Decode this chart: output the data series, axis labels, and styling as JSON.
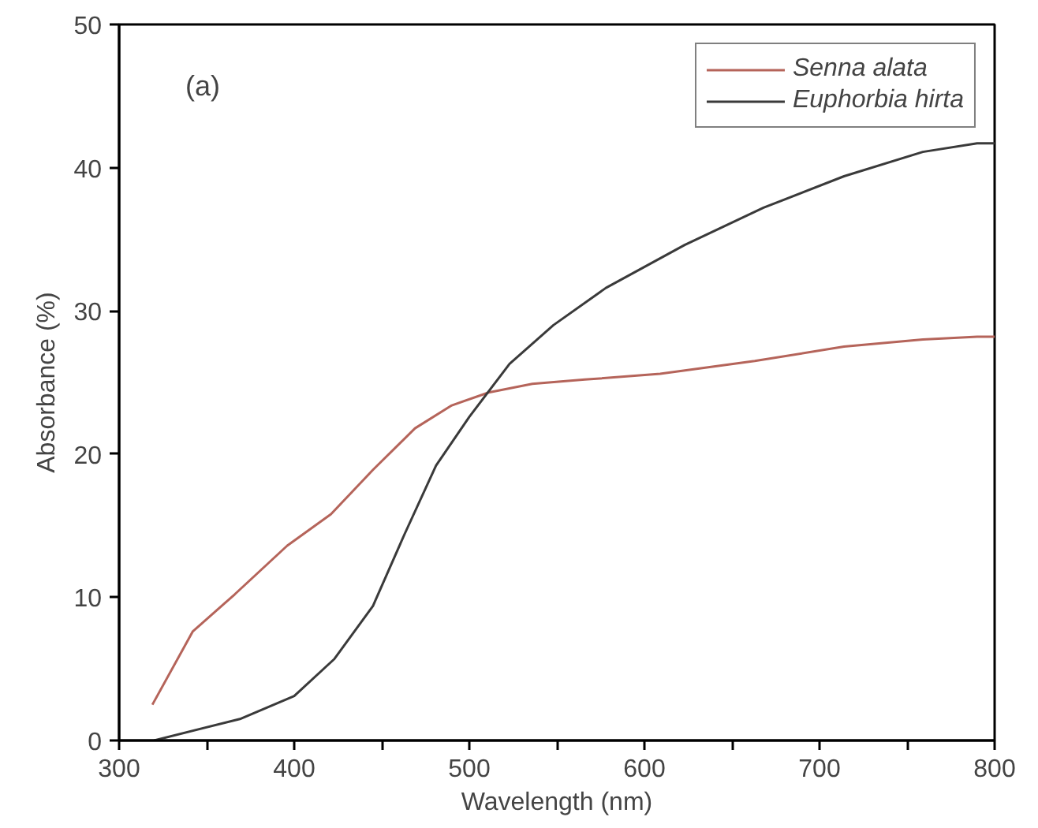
{
  "chart_data": {
    "type": "line",
    "xlabel": "Wavelength (nm)",
    "ylabel": "Absorbance (%)",
    "annotations": [
      "(a)"
    ],
    "xlim": [
      300,
      800
    ],
    "ylim": [
      0,
      50
    ],
    "xticks": [
      300,
      {
        "value": 350,
        "label": null
      },
      400,
      {
        "value": 450,
        "label": null
      },
      500,
      {
        "value": 550,
        "label": null
      },
      600,
      {
        "value": 650,
        "label": null
      },
      700,
      {
        "value": 750,
        "label": null
      },
      800
    ],
    "yticks": [
      0,
      10,
      20,
      30,
      40,
      50
    ],
    "grid": false,
    "legend": "top right",
    "line_style": "solid",
    "series": [
      {
        "name": "Senna alata",
        "color": "#b5645a",
        "x": [
          319,
          342,
          366,
          396,
          421,
          445,
          469,
          490,
          511,
          536,
          566,
          609,
          663,
          714,
          759,
          790,
          800
        ],
        "values": [
          2.5,
          7.6,
          10.2,
          13.6,
          15.8,
          18.9,
          21.8,
          23.4,
          24.3,
          24.9,
          25.2,
          25.6,
          26.5,
          27.5,
          28.0,
          28.2,
          28.2
        ]
      },
      {
        "name": "Euphorbia hirta",
        "color": "#3a3a3a",
        "x": [
          320,
          369,
          400,
          423,
          445,
          463,
          481,
          500,
          523,
          548,
          578,
          623,
          668,
          714,
          759,
          790,
          800
        ],
        "values": [
          0,
          1.5,
          3.1,
          5.7,
          9.4,
          14.4,
          19.2,
          22.6,
          26.3,
          29.0,
          31.6,
          34.6,
          37.2,
          39.4,
          41.1,
          41.7,
          41.7
        ]
      }
    ]
  }
}
